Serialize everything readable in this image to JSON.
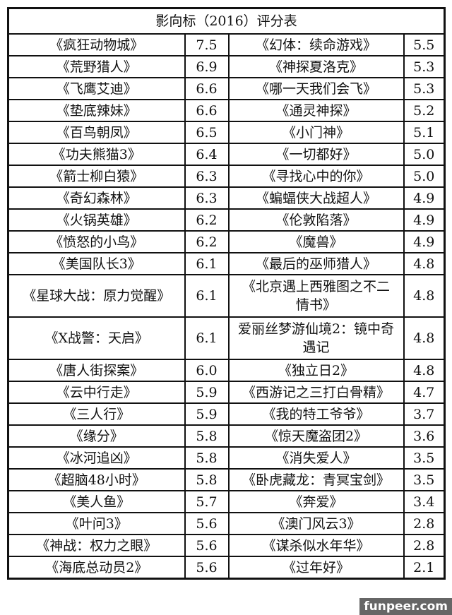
{
  "title": "影向标（2016）评分表",
  "rows": [
    [
      "《疯狂动物城》",
      "7.5",
      "《幻体：续命游戏》",
      "5.5"
    ],
    [
      "《荒野猎人》",
      "6.9",
      "《神探夏洛克》",
      "5.3"
    ],
    [
      "《飞鹰艾迪》",
      "6.6",
      "《哪一天我们会飞》",
      "5.3"
    ],
    [
      "《垫底辣妹》",
      "6.6",
      "《通灵神探》",
      "5.2"
    ],
    [
      "《百鸟朝凤》",
      "6.5",
      "《小门神》",
      "5.1"
    ],
    [
      "《功夫熊猫3》",
      "6.4",
      "《一切都好》",
      "5.0"
    ],
    [
      "《箭士柳白猿》",
      "6.3",
      "《寻找心中的你》",
      "5.0"
    ],
    [
      "《奇幻森林》",
      "6.3",
      "《蝙蝠侠大战超人》",
      "4.9"
    ],
    [
      "《火锅英雄》",
      "6.2",
      "《伦敦陷落》",
      "4.9"
    ],
    [
      "《愤怒的小鸟》",
      "6.2",
      "《魔兽》",
      "4.9"
    ],
    [
      "《美国队长3》",
      "6.1",
      "《最后的巫师猎人》",
      "4.8"
    ],
    [
      "《星球大战：原力觉醒》",
      "6.1",
      "《北京遇上西雅图之不二情书》",
      "4.8"
    ],
    [
      "《X战警：天启》",
      "6.1",
      "爱丽丝梦游仙境2：镜中奇遇记",
      "4.8"
    ],
    [
      "《唐人街探案》",
      "6.0",
      "《独立日2》",
      "4.8"
    ],
    [
      "《云中行走》",
      "5.9",
      "《西游记之三打白骨精》",
      "4.7"
    ],
    [
      "《三人行》",
      "5.9",
      "《我的特工爷爷》",
      "3.7"
    ],
    [
      "《缘分》",
      "5.8",
      "《惊天魔盗团2》",
      "3.6"
    ],
    [
      "《冰河追凶》",
      "5.8",
      "《消失爱人》",
      "3.5"
    ],
    [
      "《超脑48小时》",
      "5.8",
      "《卧虎藏龙：青冥宝剑》",
      "3.5"
    ],
    [
      "《美人鱼》",
      "5.7",
      "《奔爱》",
      "3.4"
    ],
    [
      "《叶问3》",
      "5.6",
      "《澳门风云3》",
      "2.8"
    ],
    [
      "《神战：权力之眼》",
      "5.6",
      "《谋杀似水年华》",
      "2.8"
    ],
    [
      "《海底总动员2》",
      "5.6",
      "《过年好》",
      "2.1"
    ]
  ],
  "watermark": "funpeer.com"
}
